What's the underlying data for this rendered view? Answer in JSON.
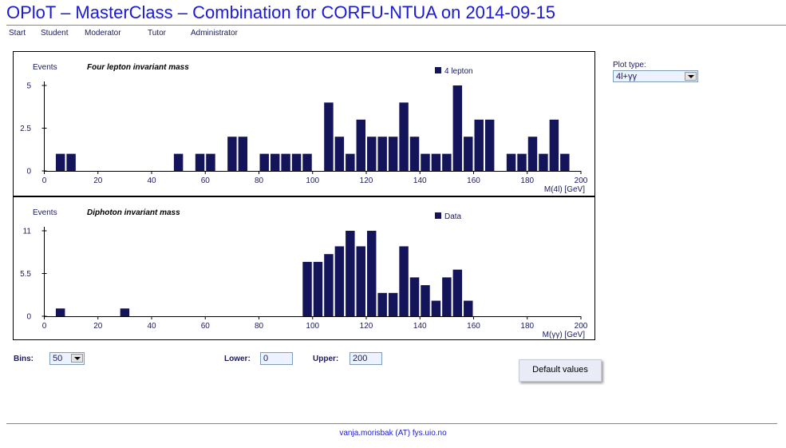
{
  "page": {
    "title": "OPloT – MasterClass – Combination for CORFU-NTUA on 2014-09-15"
  },
  "nav": {
    "items": [
      "Start",
      "Student",
      "Moderator",
      "Tutor",
      "Administrator"
    ]
  },
  "plot_type": {
    "label": "Plot type:",
    "selected": "4l+γγ"
  },
  "controls": {
    "bins_label": "Bins:",
    "bins_value": "50",
    "lower_label": "Lower:",
    "lower_value": "0",
    "upper_label": "Upper:",
    "upper_value": "200",
    "default_button": "Default values"
  },
  "footer": {
    "contact": "vanja.morisbak (AT) fys.uio.no"
  },
  "colors": {
    "bar": "#14145a",
    "title": "#1a1ad6"
  },
  "chart_data": [
    {
      "type": "bar",
      "title": "Four lepton invariant mass",
      "ylabel": "Events",
      "xlabel": "M(4l) [GeV]",
      "legend": "4 lepton",
      "legend_position": "top-right",
      "xlim": [
        0,
        200
      ],
      "ylim": [
        0,
        5
      ],
      "bin_width": 4,
      "x_ticks": [
        0,
        20,
        40,
        60,
        80,
        100,
        120,
        140,
        160,
        180,
        200
      ],
      "y_ticks": [
        0,
        2.5,
        5
      ],
      "y_tick_labels": [
        "0",
        "2.5",
        "5"
      ],
      "values": [
        0,
        1,
        1,
        0,
        0,
        0,
        0,
        0,
        0,
        0,
        0,
        0,
        1,
        0,
        1,
        1,
        0,
        2,
        2,
        0,
        1,
        1,
        1,
        1,
        1,
        0,
        4,
        2,
        1,
        3,
        2,
        2,
        2,
        4,
        2,
        1,
        1,
        1,
        5,
        2,
        3,
        3,
        0,
        1,
        1,
        2,
        1,
        3,
        1,
        0
      ]
    },
    {
      "type": "bar",
      "title": "Diphoton invariant mass",
      "ylabel": "Events",
      "xlabel": "M(γγ) [GeV]",
      "legend": "Data",
      "legend_position": "top-right",
      "xlim": [
        0,
        200
      ],
      "ylim": [
        0,
        11
      ],
      "bin_width": 4,
      "x_ticks": [
        0,
        20,
        40,
        60,
        80,
        100,
        120,
        140,
        160,
        180,
        200
      ],
      "y_ticks": [
        0,
        5.5,
        11
      ],
      "y_tick_labels": [
        "0",
        "5.5",
        "11"
      ],
      "values": [
        0,
        1,
        0,
        0,
        0,
        0,
        0,
        1,
        0,
        0,
        0,
        0,
        0,
        0,
        0,
        0,
        0,
        0,
        0,
        0,
        0,
        0,
        0,
        0,
        7,
        7,
        8,
        9,
        11,
        9,
        11,
        3,
        3,
        9,
        5,
        4,
        2,
        5,
        6,
        2,
        0,
        0,
        0,
        0,
        0,
        0,
        0,
        0,
        0,
        0
      ]
    }
  ]
}
